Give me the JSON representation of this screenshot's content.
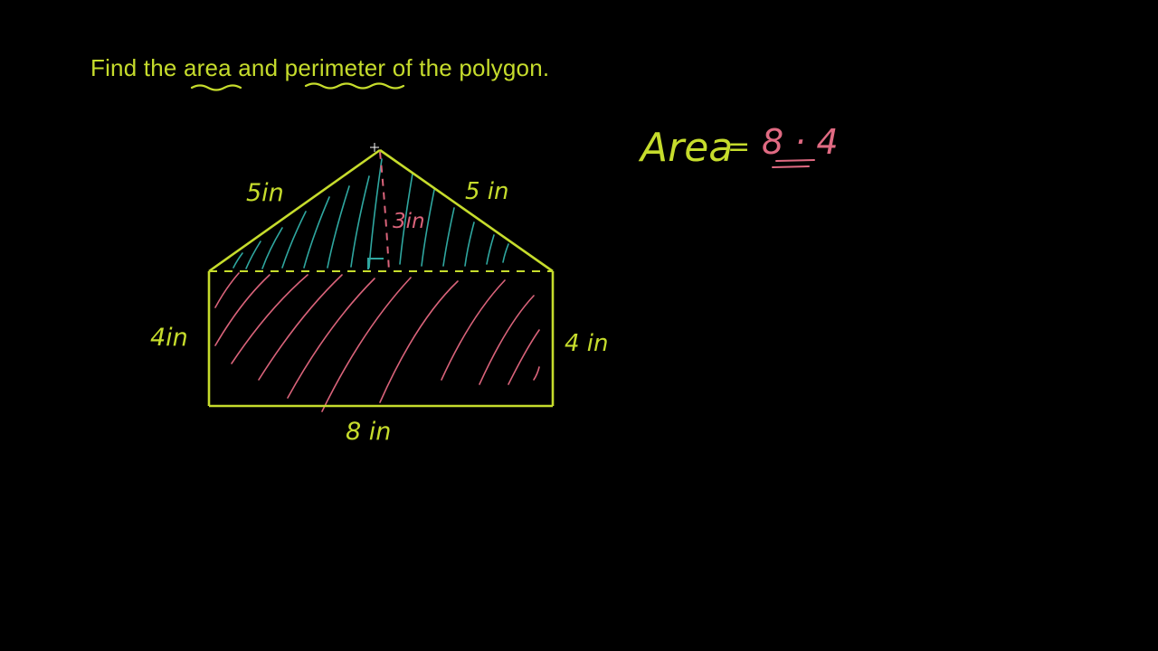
{
  "problem": {
    "prefix": "Find the ",
    "word1": "area",
    "middle": " and ",
    "word2": "perimeter",
    "suffix": " of the polygon."
  },
  "labels": {
    "left_slant": "5in",
    "right_slant": "5 in",
    "height": "3in",
    "left_side": "4in",
    "right_side": "4 in",
    "bottom": "8 in"
  },
  "work": {
    "area_label": "Area",
    "equals": "=",
    "expression": "8 · 4"
  },
  "colors": {
    "background": "#000000",
    "outline": "#c6dc2c",
    "triangle_hatch": "#2fa7a0",
    "rect_hatch": "#d9637a",
    "height_line": "#d9637a",
    "right_angle": "#2fa7a0",
    "expression": "#e06a82"
  }
}
